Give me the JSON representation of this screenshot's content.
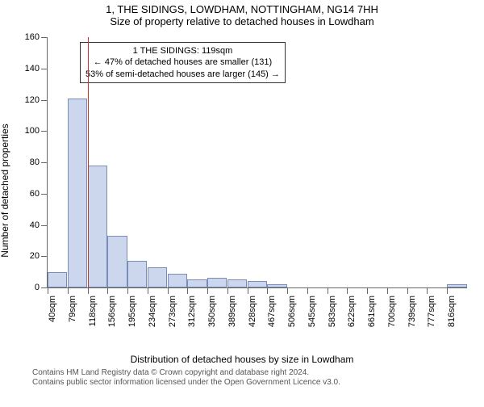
{
  "title": "1, THE SIDINGS, LOWDHAM, NOTTINGHAM, NG14 7HH",
  "subtitle": "Size of property relative to detached houses in Lowdham",
  "xlabel": "Distribution of detached houses by size in Lowdham",
  "ylabel": "Number of detached properties",
  "chart": {
    "type": "histogram",
    "background_color": "#ffffff",
    "bar_fill": "#ccd6ed",
    "bar_border": "#7a8db8",
    "refline_color": "#c0392b",
    "grid_color": "#666666",
    "ylim": [
      0,
      160
    ],
    "ytick_step": 20,
    "label_fontsize": 12,
    "tick_fontsize": 11,
    "x_categories": [
      "40sqm",
      "79sqm",
      "118sqm",
      "156sqm",
      "195sqm",
      "234sqm",
      "273sqm",
      "312sqm",
      "350sqm",
      "389sqm",
      "428sqm",
      "467sqm",
      "506sqm",
      "545sqm",
      "583sqm",
      "622sqm",
      "661sqm",
      "700sqm",
      "739sqm",
      "777sqm",
      "816sqm"
    ],
    "values": [
      10,
      121,
      78,
      33,
      17,
      13,
      9,
      5,
      6,
      5,
      4,
      2,
      0,
      0,
      0,
      0,
      0,
      0,
      0,
      0,
      2
    ],
    "refline_x_value": 119,
    "x_min": 40,
    "x_step": 38.8
  },
  "annotation": {
    "line1": "1 THE SIDINGS: 119sqm",
    "line2": "← 47% of detached houses are smaller (131)",
    "line3": "53% of semi-detached houses are larger (145) →"
  },
  "footer": {
    "line1": "Contains HM Land Registry data © Crown copyright and database right 2024.",
    "line2": "Contains public sector information licensed under the Open Government Licence v3.0."
  }
}
